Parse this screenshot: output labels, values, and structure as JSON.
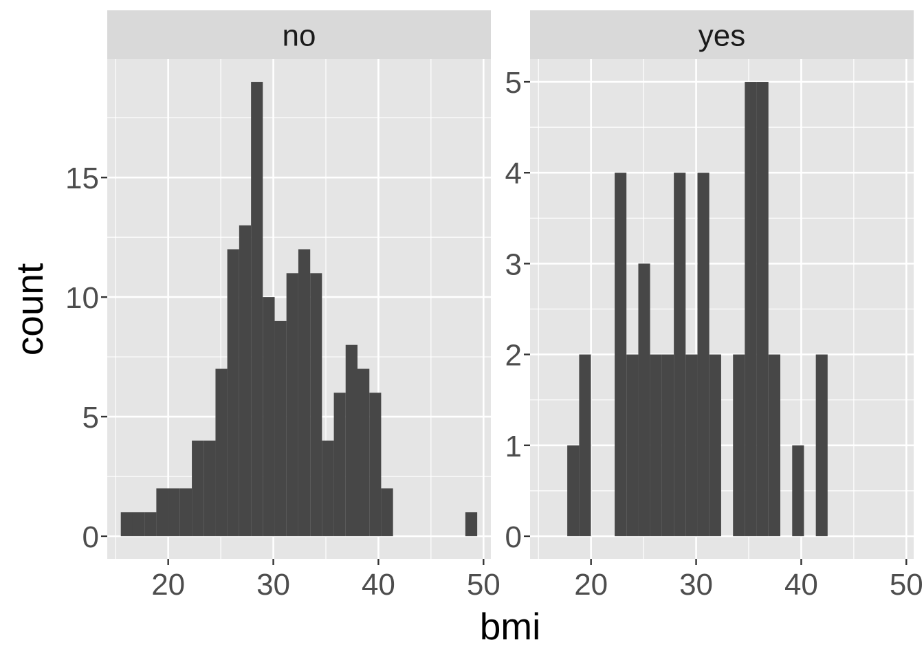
{
  "chart_data": {
    "type": "bar",
    "subtype": "faceted-histogram",
    "xlabel": "bmi",
    "ylabel": "count",
    "bar_color": "#474747",
    "panel_bg": "#E5E5E5",
    "strip_bg": "#D9D9D9",
    "grid_color": "#FFFFFF",
    "grid": true,
    "x_ticks": [
      20,
      30,
      40,
      50
    ],
    "xlim": [
      14.2,
      50.7
    ],
    "bin_width": 1.126,
    "panels": [
      {
        "name": "no",
        "ylim": [
          -0.95,
          19.95
        ],
        "y_ticks": [
          0,
          5,
          10,
          15
        ],
        "bins": [
          {
            "x": [
              15.49,
              16.62
            ],
            "count": 1
          },
          {
            "x": [
              16.62,
              17.74
            ],
            "count": 1
          },
          {
            "x": [
              17.74,
              18.87
            ],
            "count": 1
          },
          {
            "x": [
              18.87,
              19.99
            ],
            "count": 2
          },
          {
            "x": [
              19.99,
              21.12
            ],
            "count": 2
          },
          {
            "x": [
              21.12,
              22.25
            ],
            "count": 2
          },
          {
            "x": [
              22.25,
              23.37
            ],
            "count": 4
          },
          {
            "x": [
              23.37,
              24.5
            ],
            "count": 4
          },
          {
            "x": [
              24.5,
              25.62
            ],
            "count": 7
          },
          {
            "x": [
              25.62,
              26.75
            ],
            "count": 12
          },
          {
            "x": [
              26.75,
              27.88
            ],
            "count": 13
          },
          {
            "x": [
              27.88,
              29.0
            ],
            "count": 19
          },
          {
            "x": [
              29.0,
              30.13
            ],
            "count": 10
          },
          {
            "x": [
              30.13,
              31.25
            ],
            "count": 9
          },
          {
            "x": [
              31.25,
              32.38
            ],
            "count": 11
          },
          {
            "x": [
              32.38,
              33.51
            ],
            "count": 12
          },
          {
            "x": [
              33.51,
              34.63
            ],
            "count": 11
          },
          {
            "x": [
              34.63,
              35.76
            ],
            "count": 4
          },
          {
            "x": [
              35.76,
              36.88
            ],
            "count": 6
          },
          {
            "x": [
              36.88,
              38.01
            ],
            "count": 8
          },
          {
            "x": [
              38.01,
              39.14
            ],
            "count": 7
          },
          {
            "x": [
              39.14,
              40.26
            ],
            "count": 6
          },
          {
            "x": [
              40.26,
              41.39
            ],
            "count": 2
          },
          {
            "x": [
              48.27,
              49.4
            ],
            "count": 1
          }
        ]
      },
      {
        "name": "yes",
        "ylim": [
          -0.25,
          5.25
        ],
        "y_ticks": [
          0,
          1,
          2,
          3,
          4,
          5
        ],
        "bins": [
          {
            "x": [
              17.74,
              18.87
            ],
            "count": 1
          },
          {
            "x": [
              18.87,
              19.99
            ],
            "count": 2
          },
          {
            "x": [
              22.25,
              23.37
            ],
            "count": 4
          },
          {
            "x": [
              23.37,
              24.5
            ],
            "count": 2
          },
          {
            "x": [
              24.5,
              25.62
            ],
            "count": 3
          },
          {
            "x": [
              25.62,
              26.75
            ],
            "count": 2
          },
          {
            "x": [
              26.75,
              27.88
            ],
            "count": 2
          },
          {
            "x": [
              27.88,
              29.0
            ],
            "count": 4
          },
          {
            "x": [
              29.0,
              30.13
            ],
            "count": 2
          },
          {
            "x": [
              30.13,
              31.25
            ],
            "count": 4
          },
          {
            "x": [
              31.25,
              32.38
            ],
            "count": 2
          },
          {
            "x": [
              33.51,
              34.63
            ],
            "count": 2
          },
          {
            "x": [
              34.63,
              35.76
            ],
            "count": 5
          },
          {
            "x": [
              35.76,
              36.88
            ],
            "count": 5
          },
          {
            "x": [
              36.88,
              38.01
            ],
            "count": 2
          },
          {
            "x": [
              39.14,
              40.26
            ],
            "count": 1
          },
          {
            "x": [
              41.39,
              42.51
            ],
            "count": 2
          }
        ]
      }
    ]
  }
}
